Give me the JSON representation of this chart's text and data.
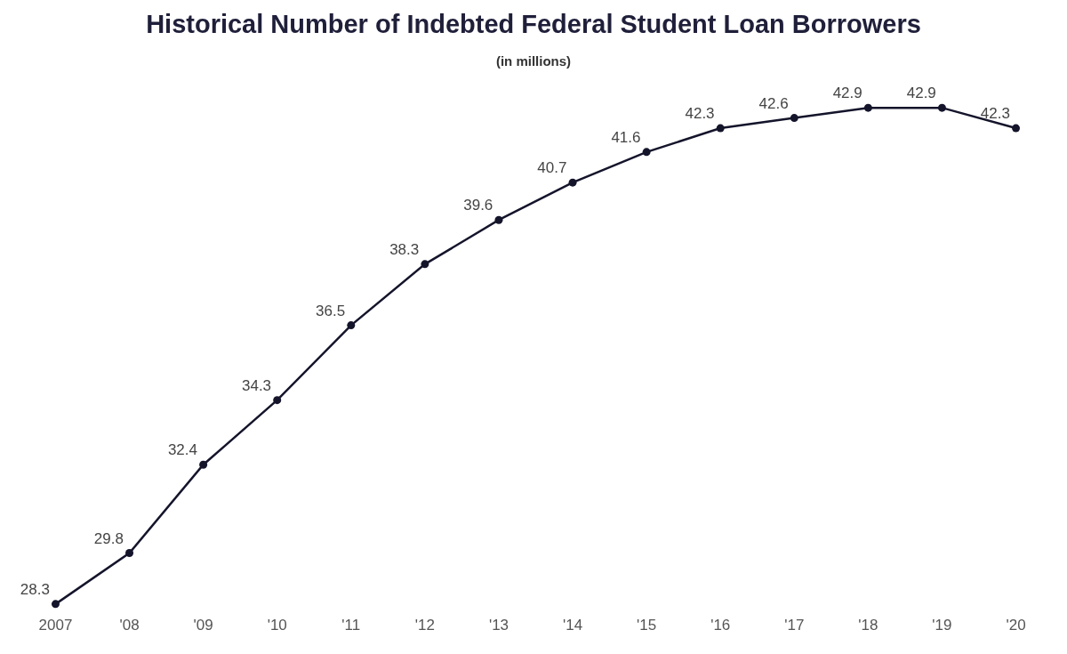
{
  "chart_data": {
    "type": "line",
    "title": "Historical Number of Indebted Federal Student Loan Borrowers",
    "subtitle": "(in millions)",
    "categories": [
      "2007",
      "'08",
      "'09",
      "'10",
      "'11",
      "'12",
      "'13",
      "'14",
      "'15",
      "'16",
      "'17",
      "'18",
      "'19",
      "'20"
    ],
    "series": [
      {
        "color": "#14142b",
        "values": [
          28.3,
          29.8,
          32.4,
          34.3,
          36.5,
          38.3,
          39.6,
          40.7,
          41.6,
          42.3,
          42.6,
          42.9,
          42.9,
          42.3
        ]
      }
    ],
    "data_labels": true,
    "marker": "circle",
    "line_style": "solid",
    "tick_labels": "x"
  }
}
